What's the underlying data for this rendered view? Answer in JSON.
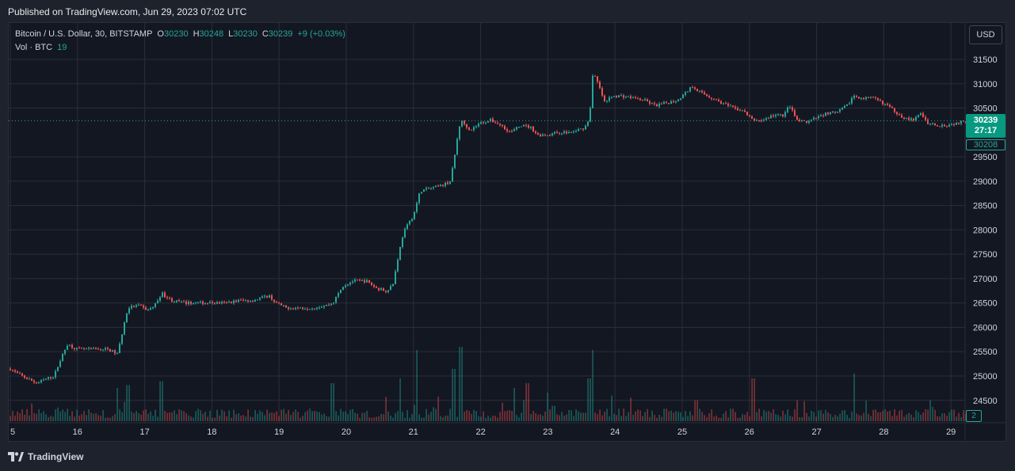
{
  "header": {
    "published": "Published on TradingView.com, Jun 29, 2023 07:02 UTC"
  },
  "footer": {
    "brand": "TradingView",
    "logo_icon": "tradingview-logo-icon"
  },
  "legend": {
    "symbol": "Bitcoin / U.S. Dollar, 30, BITSTAMP",
    "o_label": "O",
    "o_value": "30230",
    "h_label": "H",
    "h_value": "30248",
    "l_label": "L",
    "l_value": "30230",
    "c_label": "C",
    "c_value": "30239",
    "change": "+9 (+0.03%)",
    "vol_label": "Vol · BTC",
    "vol_value": "19"
  },
  "currency_button": "USD",
  "price_tag": {
    "price": "30239",
    "countdown": "27:17",
    "low": "30208"
  },
  "volume_tag": "2",
  "colors": {
    "up": "#26a69a",
    "down": "#ef5350",
    "background": "#131722",
    "grid": "#2a2e39",
    "text": "#d1d4dc"
  },
  "chart_data": {
    "type": "candlestick",
    "x_ticks": [
      "5",
      "16",
      "17",
      "18",
      "19",
      "20",
      "21",
      "22",
      "23",
      "24",
      "25",
      "26",
      "27",
      "28",
      "29"
    ],
    "y_ticks": [
      "31500",
      "31000",
      "30500",
      "29500",
      "29000",
      "28500",
      "28000",
      "27500",
      "27000",
      "26500",
      "26000",
      "25500",
      "25000",
      "24500"
    ],
    "ylim": [
      24300,
      31700
    ],
    "current_price": 30239,
    "grid": true,
    "price_path": [
      [
        15.0,
        25150
      ],
      [
        15.1,
        25050
      ],
      [
        15.25,
        24950
      ],
      [
        15.4,
        24850
      ],
      [
        15.55,
        24950
      ],
      [
        15.65,
        25000
      ],
      [
        15.75,
        25350
      ],
      [
        15.85,
        25650
      ],
      [
        16.0,
        25550
      ],
      [
        16.2,
        25550
      ],
      [
        16.45,
        25550
      ],
      [
        16.6,
        25450
      ],
      [
        16.65,
        25800
      ],
      [
        16.75,
        26400
      ],
      [
        16.9,
        26450
      ],
      [
        17.05,
        26350
      ],
      [
        17.15,
        26450
      ],
      [
        17.25,
        26700
      ],
      [
        17.4,
        26550
      ],
      [
        17.6,
        26500
      ],
      [
        17.8,
        26500
      ],
      [
        18.0,
        26500
      ],
      [
        18.2,
        26500
      ],
      [
        18.4,
        26550
      ],
      [
        18.6,
        26550
      ],
      [
        18.85,
        26650
      ],
      [
        18.95,
        26500
      ],
      [
        19.1,
        26400
      ],
      [
        19.3,
        26400
      ],
      [
        19.5,
        26400
      ],
      [
        19.7,
        26450
      ],
      [
        19.8,
        26500
      ],
      [
        19.95,
        26850
      ],
      [
        20.1,
        26950
      ],
      [
        20.3,
        26950
      ],
      [
        20.45,
        26800
      ],
      [
        20.6,
        26750
      ],
      [
        20.7,
        26900
      ],
      [
        20.75,
        27300
      ],
      [
        20.85,
        27950
      ],
      [
        21.0,
        28300
      ],
      [
        21.1,
        28800
      ],
      [
        21.25,
        28850
      ],
      [
        21.4,
        28900
      ],
      [
        21.55,
        29000
      ],
      [
        21.6,
        29400
      ],
      [
        21.65,
        29850
      ],
      [
        21.7,
        30250
      ],
      [
        21.85,
        30050
      ],
      [
        22.0,
        30200
      ],
      [
        22.15,
        30250
      ],
      [
        22.3,
        30150
      ],
      [
        22.45,
        30000
      ],
      [
        22.6,
        30150
      ],
      [
        22.75,
        30100
      ],
      [
        22.85,
        29950
      ],
      [
        23.0,
        29950
      ],
      [
        23.15,
        30000
      ],
      [
        23.35,
        30000
      ],
      [
        23.55,
        30100
      ],
      [
        23.62,
        30300
      ],
      [
        23.67,
        31200
      ],
      [
        23.72,
        31100
      ],
      [
        23.85,
        30600
      ],
      [
        23.95,
        30750
      ],
      [
        24.1,
        30750
      ],
      [
        24.3,
        30700
      ],
      [
        24.45,
        30650
      ],
      [
        24.6,
        30550
      ],
      [
        24.75,
        30600
      ],
      [
        24.9,
        30650
      ],
      [
        25.0,
        30750
      ],
      [
        25.15,
        30950
      ],
      [
        25.3,
        30800
      ],
      [
        25.45,
        30700
      ],
      [
        25.6,
        30600
      ],
      [
        25.75,
        30500
      ],
      [
        25.9,
        30450
      ],
      [
        26.05,
        30250
      ],
      [
        26.2,
        30250
      ],
      [
        26.35,
        30350
      ],
      [
        26.5,
        30350
      ],
      [
        26.6,
        30550
      ],
      [
        26.7,
        30250
      ],
      [
        26.85,
        30200
      ],
      [
        27.0,
        30300
      ],
      [
        27.15,
        30400
      ],
      [
        27.3,
        30400
      ],
      [
        27.45,
        30550
      ],
      [
        27.55,
        30750
      ],
      [
        27.7,
        30700
      ],
      [
        27.85,
        30700
      ],
      [
        28.0,
        30600
      ],
      [
        28.15,
        30450
      ],
      [
        28.3,
        30300
      ],
      [
        28.45,
        30250
      ],
      [
        28.55,
        30400
      ],
      [
        28.65,
        30200
      ],
      [
        28.8,
        30150
      ],
      [
        28.95,
        30150
      ],
      [
        29.1,
        30200
      ],
      [
        29.25,
        30239
      ]
    ],
    "volume_spikes": [
      [
        16.6,
        0.35
      ],
      [
        16.75,
        0.38
      ],
      [
        17.25,
        0.42
      ],
      [
        19.8,
        0.4
      ],
      [
        20.8,
        0.45
      ],
      [
        21.05,
        0.75
      ],
      [
        21.6,
        0.55
      ],
      [
        21.7,
        0.78
      ],
      [
        22.5,
        0.35
      ],
      [
        22.7,
        0.4
      ],
      [
        23.0,
        0.3
      ],
      [
        23.62,
        0.45
      ],
      [
        23.67,
        0.75
      ],
      [
        25.2,
        0.22
      ],
      [
        26.05,
        0.45
      ],
      [
        26.7,
        0.22
      ],
      [
        27.55,
        0.5
      ],
      [
        28.7,
        0.22
      ]
    ]
  }
}
